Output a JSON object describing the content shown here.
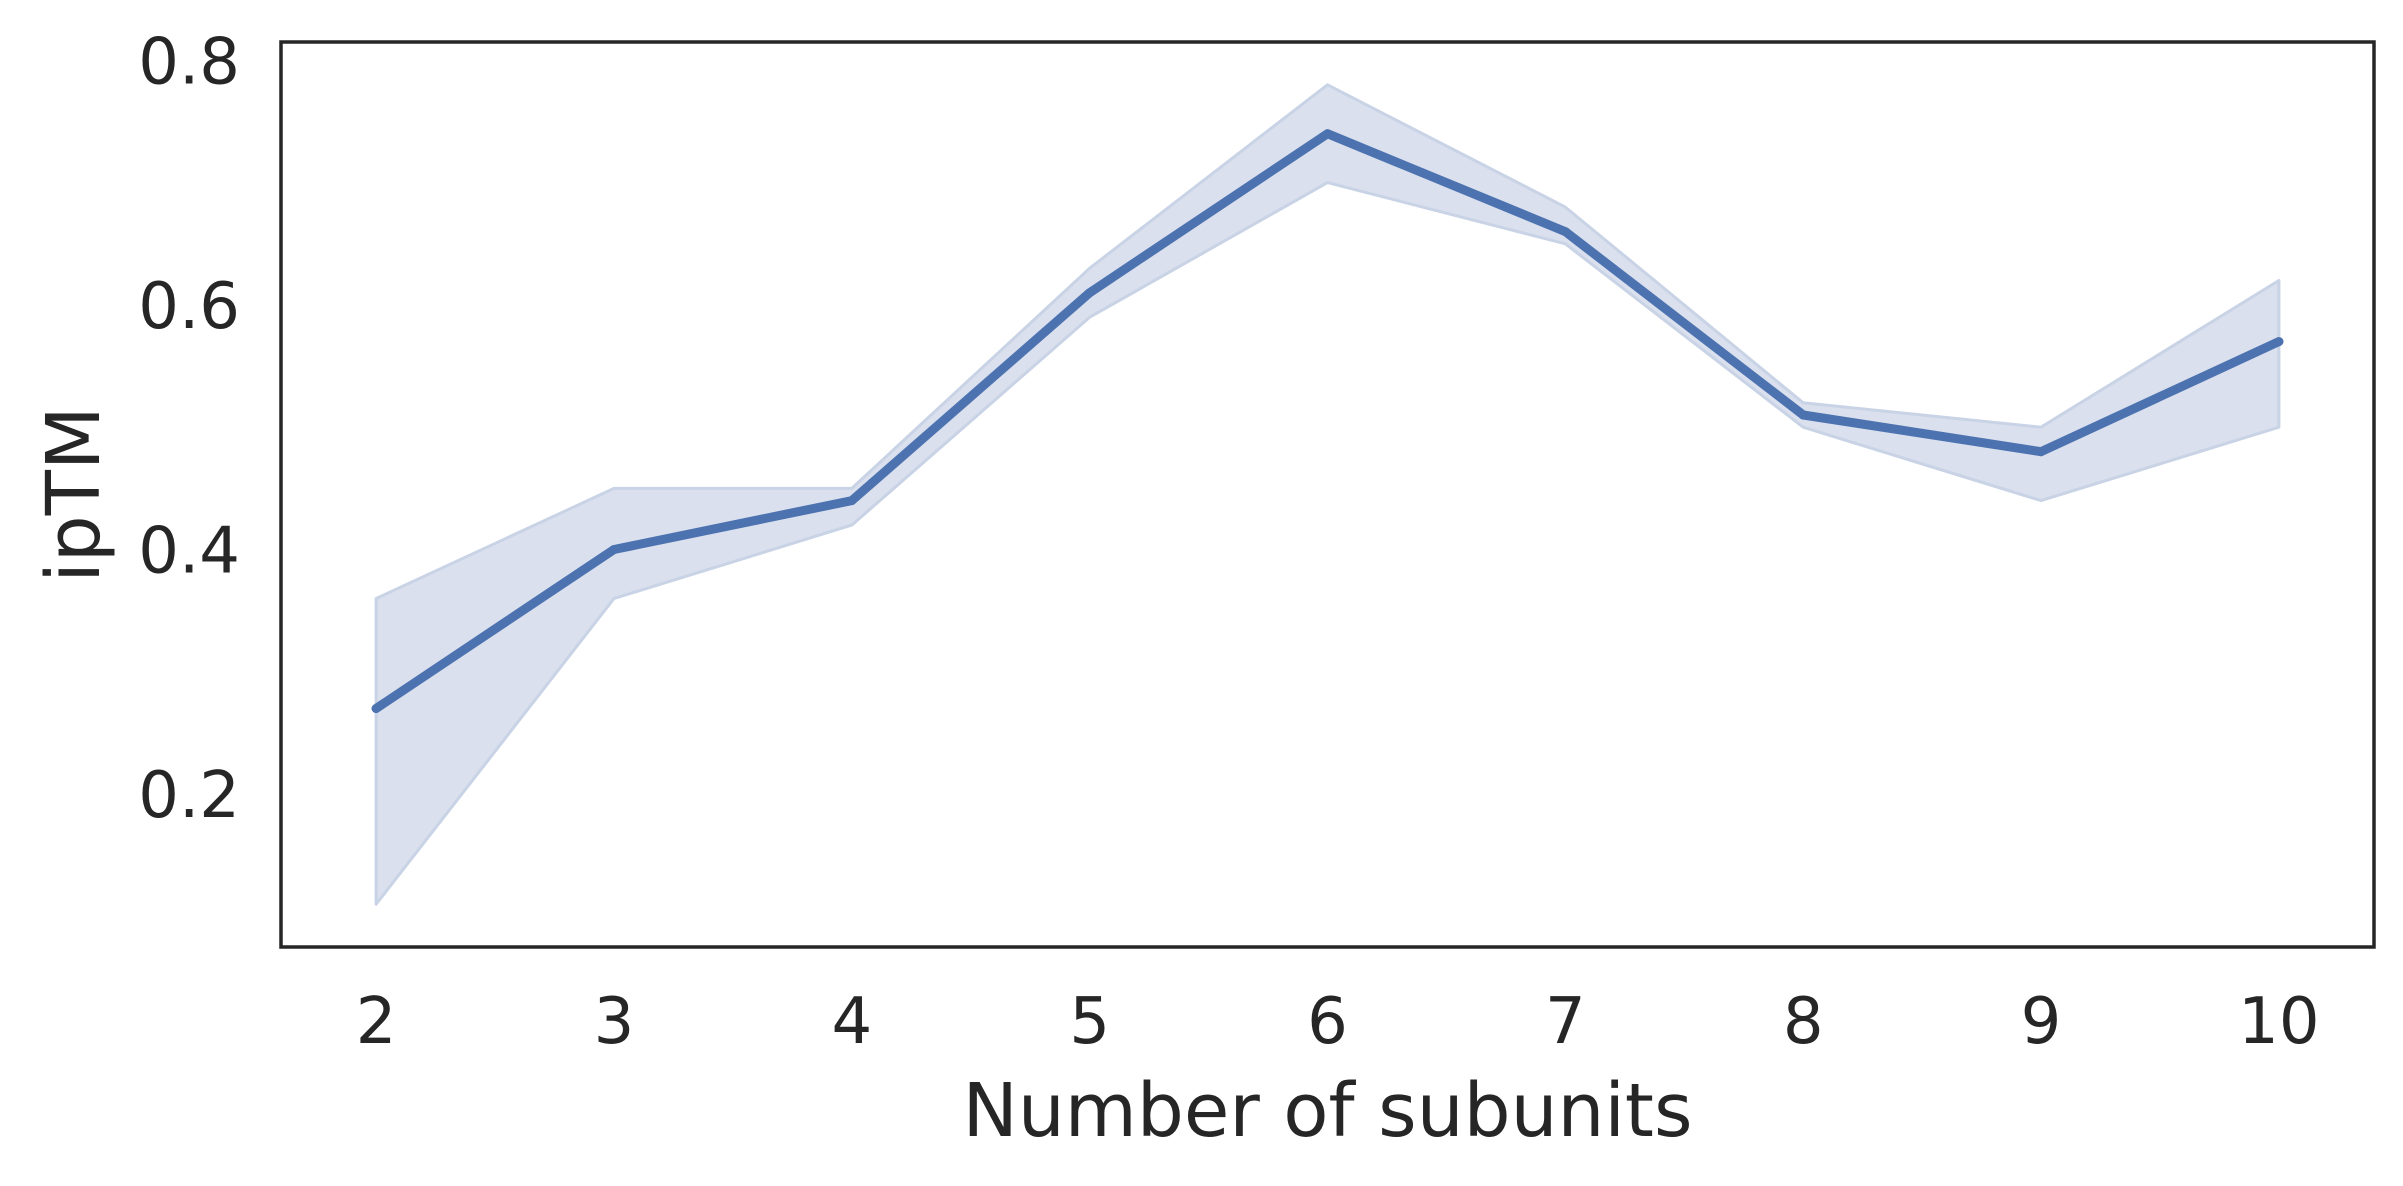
{
  "chart_data": {
    "type": "line",
    "title": "",
    "xlabel": "Number of subunits",
    "ylabel": "ipTM",
    "x": [
      2,
      3,
      4,
      5,
      6,
      7,
      8,
      9,
      10
    ],
    "x_tick_labels": [
      "2",
      "3",
      "4",
      "5",
      "6",
      "7",
      "8",
      "9",
      "10"
    ],
    "y_ticks": [
      0.2,
      0.4,
      0.6,
      0.8
    ],
    "y_tick_labels": [
      "0.2",
      "0.4",
      "0.6",
      "0.8"
    ],
    "xlim": [
      1.6,
      10.4
    ],
    "ylim": [
      0.075,
      0.815
    ],
    "grid": false,
    "legend": "none",
    "series": [
      {
        "values": [
          0.27,
          0.4,
          0.44,
          0.61,
          0.74,
          0.66,
          0.51,
          0.48,
          0.57
        ],
        "ci_lower": [
          0.11,
          0.36,
          0.42,
          0.59,
          0.7,
          0.65,
          0.5,
          0.44,
          0.5
        ],
        "ci_upper": [
          0.36,
          0.45,
          0.45,
          0.63,
          0.78,
          0.68,
          0.52,
          0.5,
          0.62
        ],
        "color": "#4c72b0",
        "band_color": "#dae0ed"
      }
    ]
  },
  "colors": {
    "axes": "#262626",
    "background": "#ffffff"
  }
}
